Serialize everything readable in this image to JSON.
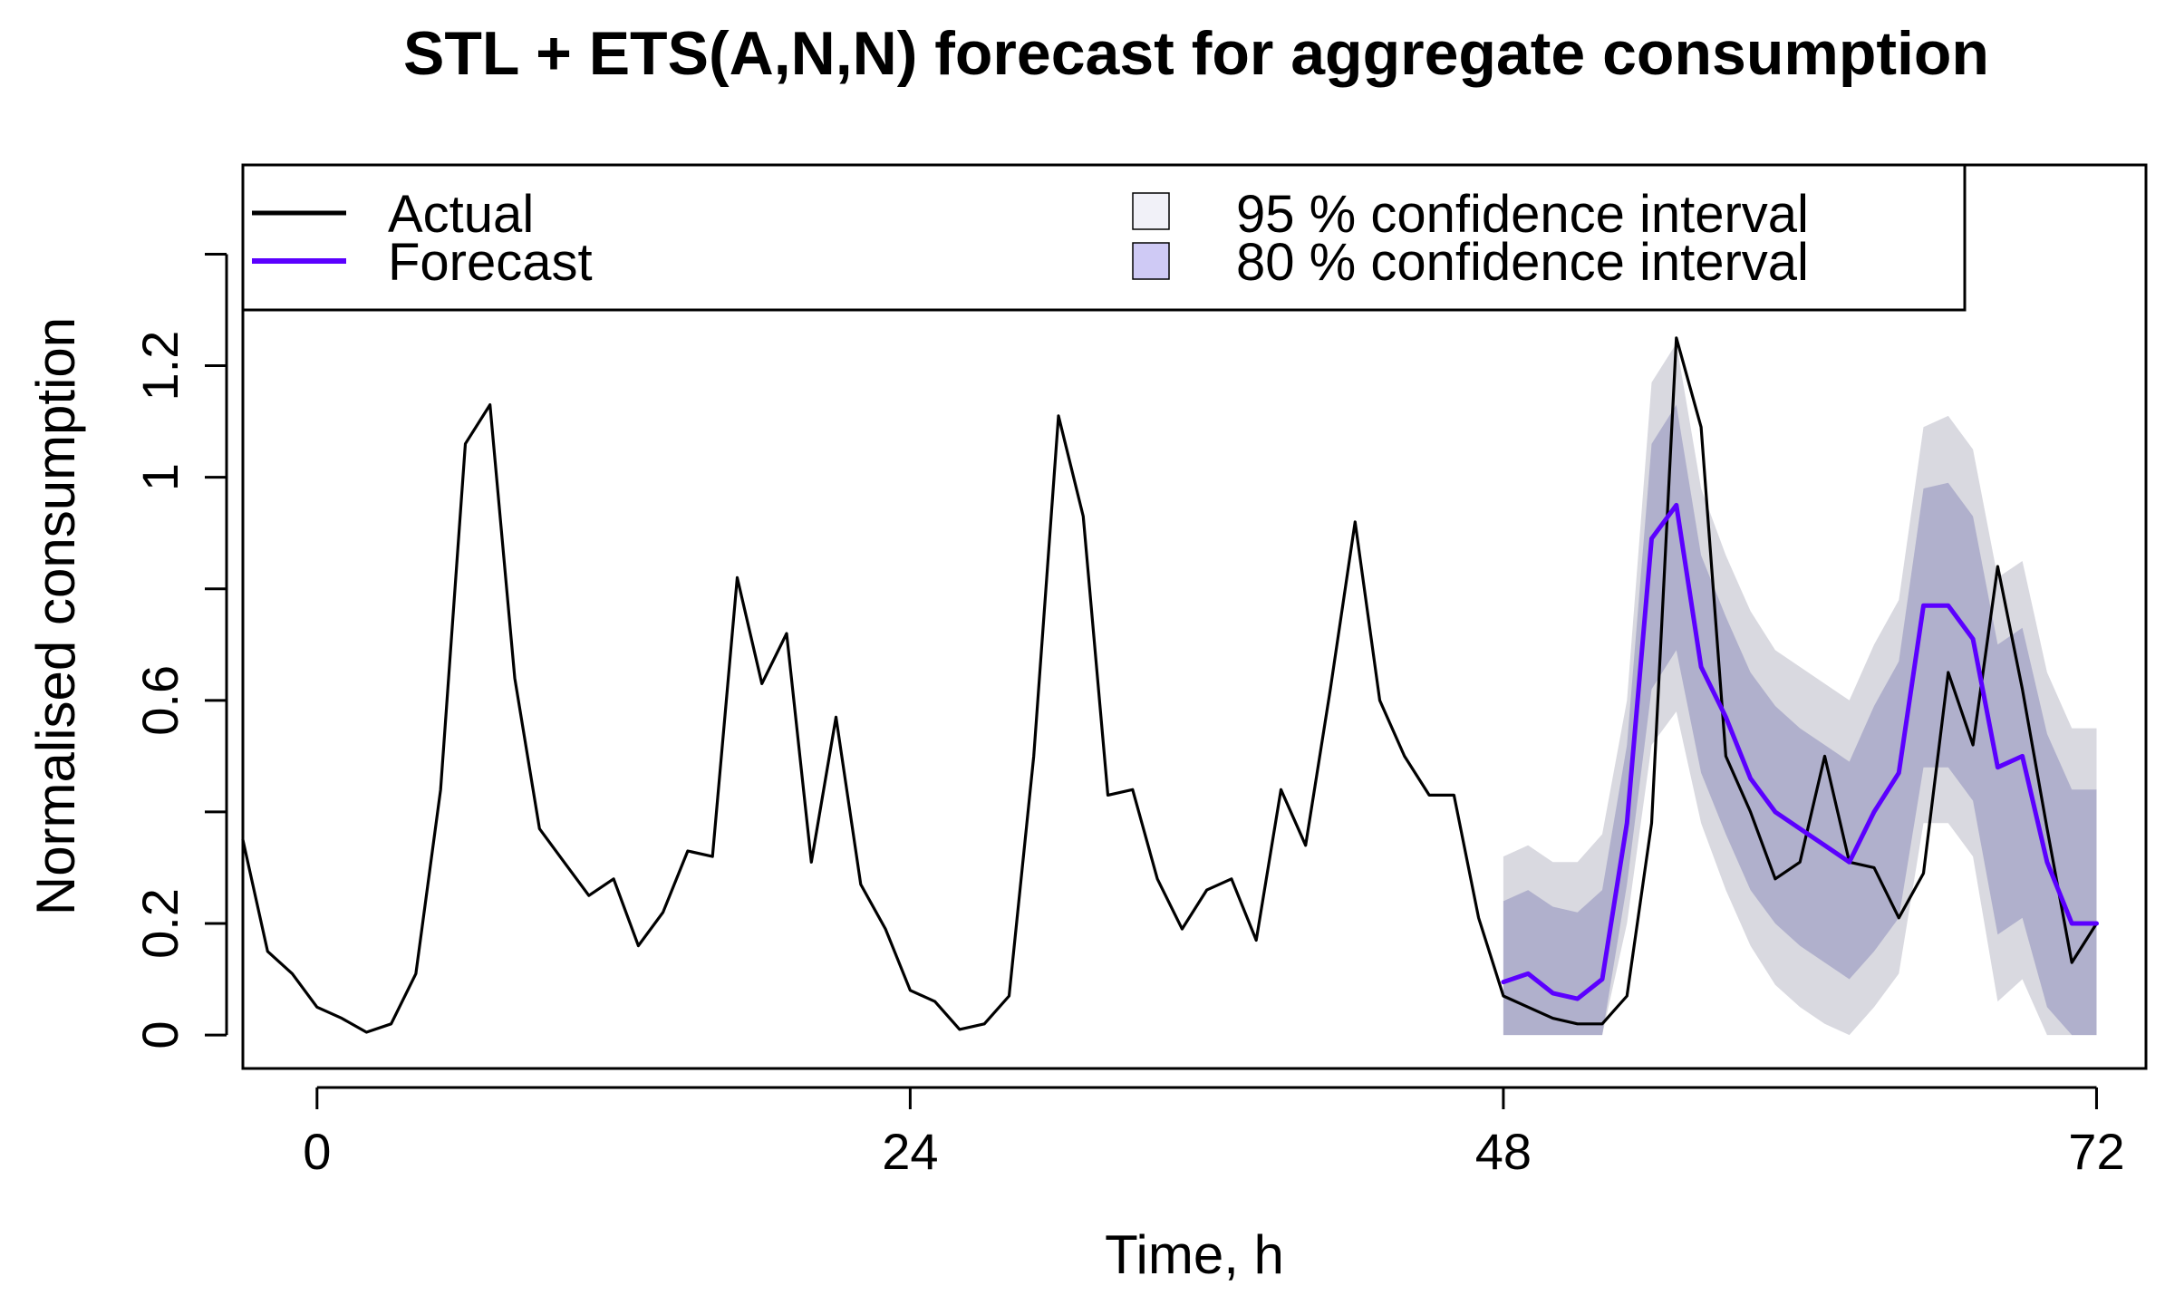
{
  "chart_data": {
    "type": "line",
    "title": "STL + ETS(A,N,N) forecast for aggregate consumption",
    "xlabel": "Time, h",
    "ylabel": "Normalised consumption",
    "xlim": [
      -3,
      74
    ],
    "ylim": [
      -0.06,
      1.56
    ],
    "x_ticks": [
      0,
      24,
      48,
      72
    ],
    "x_tick_labels": [
      "0",
      "24",
      "48",
      "72"
    ],
    "y_ticks": [
      0,
      0.2,
      0.4,
      0.6,
      0.8,
      1.0,
      1.2,
      1.4
    ],
    "y_tick_labels": [
      "0",
      "0.2",
      "",
      "0.6",
      "",
      "1",
      "1.2",
      ""
    ],
    "legend": {
      "placement": "top",
      "entries": [
        {
          "label": "Actual",
          "kind": "line",
          "color": "#000000"
        },
        {
          "label": "Forecast",
          "kind": "line",
          "color": "#5b00ff"
        },
        {
          "label": "95 % confidence interval",
          "kind": "box",
          "color": "#f1f1f8"
        },
        {
          "label": "80 % confidence interval",
          "kind": "box",
          "color": "#cfcaf5"
        }
      ]
    },
    "colors": {
      "actual": "#000000",
      "forecast": "#5b00ff",
      "ci95": "#d9d9e0",
      "ci80": "#b0b0cc"
    },
    "series": [
      {
        "name": "Actual",
        "x": [
          -3,
          -2,
          -1,
          0,
          1,
          2,
          3,
          4,
          5,
          6,
          7,
          8,
          9,
          10,
          11,
          12,
          13,
          14,
          15,
          16,
          17,
          18,
          19,
          20,
          21,
          22,
          23,
          24,
          25,
          26,
          27,
          28,
          29,
          30,
          31,
          32,
          33,
          34,
          35,
          36,
          37,
          38,
          39,
          40,
          41,
          42,
          43,
          44,
          45,
          46,
          47,
          48,
          49,
          50,
          51,
          52,
          53,
          54,
          55,
          56,
          57,
          58,
          59,
          60,
          61,
          62,
          63,
          64,
          65,
          66,
          67,
          68,
          69,
          70,
          71,
          72
        ],
        "values": [
          0.35,
          0.15,
          0.11,
          0.05,
          0.03,
          0.005,
          0.02,
          0.11,
          0.44,
          1.06,
          1.13,
          0.64,
          0.37,
          0.31,
          0.25,
          0.28,
          0.16,
          0.22,
          0.33,
          0.32,
          0.82,
          0.63,
          0.72,
          0.31,
          0.57,
          0.27,
          0.19,
          0.08,
          0.06,
          0.01,
          0.02,
          0.07,
          0.5,
          1.11,
          0.93,
          0.43,
          0.44,
          0.28,
          0.19,
          0.26,
          0.28,
          0.17,
          0.44,
          0.34,
          0.62,
          0.92,
          0.6,
          0.5,
          0.43,
          0.43,
          0.21,
          0.07,
          0.05,
          0.03,
          0.02,
          0.02,
          0.07,
          0.38,
          1.25,
          1.09,
          0.5,
          0.4,
          0.28,
          0.31,
          0.5,
          0.31,
          0.3,
          0.21,
          0.29,
          0.65,
          0.52,
          0.84,
          0.62,
          0.37,
          0.13,
          0.2
        ]
      },
      {
        "name": "Forecast",
        "x": [
          48,
          49,
          50,
          51,
          52,
          53,
          54,
          55,
          56,
          57,
          58,
          59,
          60,
          61,
          62,
          63,
          64,
          65,
          66,
          67,
          68,
          69,
          70,
          71,
          72
        ],
        "values": [
          0.095,
          0.11,
          0.075,
          0.065,
          0.1,
          0.38,
          0.89,
          0.95,
          0.66,
          0.57,
          0.46,
          0.4,
          0.37,
          0.34,
          0.31,
          0.4,
          0.47,
          0.77,
          0.77,
          0.71,
          0.48,
          0.5,
          0.31,
          0.2,
          0.2
        ]
      }
    ],
    "intervals": {
      "x": [
        48,
        49,
        50,
        51,
        52,
        53,
        54,
        55,
        56,
        57,
        58,
        59,
        60,
        61,
        62,
        63,
        64,
        65,
        66,
        67,
        68,
        69,
        70,
        71,
        72
      ],
      "lo95": [
        0.0,
        0.0,
        0.0,
        0.0,
        0.0,
        0.2,
        0.52,
        0.58,
        0.38,
        0.26,
        0.16,
        0.09,
        0.05,
        0.02,
        0.0,
        0.05,
        0.11,
        0.38,
        0.38,
        0.32,
        0.06,
        0.1,
        0.0,
        0.0,
        0.0
      ],
      "hi95": [
        0.32,
        0.34,
        0.31,
        0.31,
        0.36,
        0.6,
        1.17,
        1.24,
        0.98,
        0.86,
        0.76,
        0.69,
        0.66,
        0.63,
        0.6,
        0.7,
        0.78,
        1.09,
        1.11,
        1.05,
        0.82,
        0.85,
        0.65,
        0.55,
        0.55
      ],
      "lo80": [
        0.0,
        0.0,
        0.0,
        0.0,
        0.0,
        0.27,
        0.62,
        0.69,
        0.47,
        0.36,
        0.26,
        0.2,
        0.16,
        0.13,
        0.1,
        0.15,
        0.21,
        0.48,
        0.48,
        0.42,
        0.18,
        0.21,
        0.05,
        0.0,
        0.0
      ],
      "hi80": [
        0.24,
        0.26,
        0.23,
        0.22,
        0.26,
        0.52,
        1.06,
        1.13,
        0.86,
        0.75,
        0.65,
        0.59,
        0.55,
        0.52,
        0.49,
        0.59,
        0.67,
        0.98,
        0.99,
        0.93,
        0.7,
        0.73,
        0.54,
        0.44,
        0.44
      ]
    }
  }
}
